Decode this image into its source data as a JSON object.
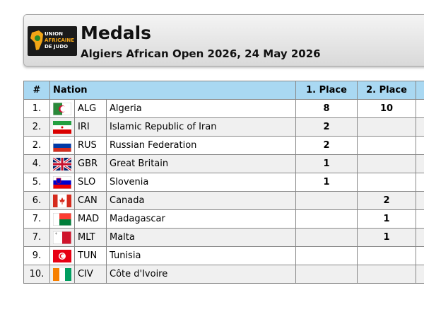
{
  "header": {
    "logo": [
      "UNION",
      "AFRICAINE",
      "DE JUDO"
    ],
    "title": "Medals",
    "subtitle": "Algiers African Open 2026, 24 May 2026"
  },
  "table": {
    "columns": [
      "#",
      "Nation",
      "1. Place",
      "2. Place"
    ],
    "rows": [
      [
        "1.",
        "ALG",
        "Algeria",
        "8",
        "10"
      ],
      [
        "2.",
        "IRI",
        "Islamic Republic of Iran",
        "2",
        null
      ],
      [
        "2.",
        "RUS",
        "Russian Federation",
        "2",
        null
      ],
      [
        "4.",
        "GBR",
        "Great Britain",
        "1",
        null
      ],
      [
        "5.",
        "SLO",
        "Slovenia",
        "1",
        null
      ],
      [
        "6.",
        "CAN",
        "Canada",
        null,
        "2"
      ],
      [
        "7.",
        "MAD",
        "Madagascar",
        null,
        "1"
      ],
      [
        "7.",
        "MLT",
        "Malta",
        null,
        "1"
      ],
      [
        "9.",
        "TUN",
        "Tunisia",
        null,
        null
      ],
      [
        "10.",
        "CIV",
        "Côte d'Ivoire",
        null,
        null
      ]
    ]
  }
}
